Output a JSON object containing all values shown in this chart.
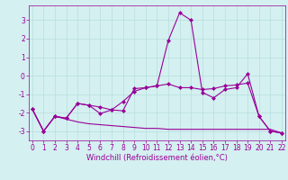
{
  "xlabel": "Windchill (Refroidissement éolien,°C)",
  "x": [
    0,
    1,
    2,
    3,
    4,
    5,
    6,
    7,
    8,
    9,
    10,
    11,
    12,
    13,
    14,
    15,
    16,
    17,
    18,
    19,
    20,
    21,
    22
  ],
  "line1": [
    -1.8,
    -3.0,
    -2.2,
    -2.3,
    -1.5,
    -1.6,
    -1.7,
    -1.85,
    -1.9,
    -0.7,
    -0.65,
    -0.55,
    1.9,
    3.4,
    3.0,
    -0.9,
    -1.2,
    -0.75,
    -0.65,
    0.1,
    -2.2,
    -3.0,
    -3.1
  ],
  "line2": [
    -1.8,
    -3.0,
    -2.2,
    -2.3,
    -1.5,
    -1.6,
    -2.05,
    -1.85,
    -1.4,
    -0.85,
    -0.65,
    -0.55,
    -0.45,
    -0.65,
    -0.65,
    -0.75,
    -0.7,
    -0.55,
    -0.5,
    -0.4,
    -2.2,
    -3.0,
    -3.1
  ],
  "line3": [
    -1.8,
    -3.0,
    -2.2,
    -2.35,
    -2.5,
    -2.6,
    -2.65,
    -2.7,
    -2.75,
    -2.8,
    -2.85,
    -2.85,
    -2.9,
    -2.9,
    -2.9,
    -2.9,
    -2.9,
    -2.9,
    -2.9,
    -2.9,
    -2.9,
    -2.9,
    -3.1
  ],
  "line_color": "#990099",
  "bg_color": "#d4f0f0",
  "grid_color": "#b8dede",
  "ylim": [
    -3.5,
    3.8
  ],
  "yticks": [
    -3,
    -2,
    -1,
    0,
    1,
    2,
    3
  ],
  "marker": "D",
  "marker_size": 2.0,
  "linewidth": 0.8,
  "tick_fontsize": 5.5,
  "label_fontsize": 6.0
}
